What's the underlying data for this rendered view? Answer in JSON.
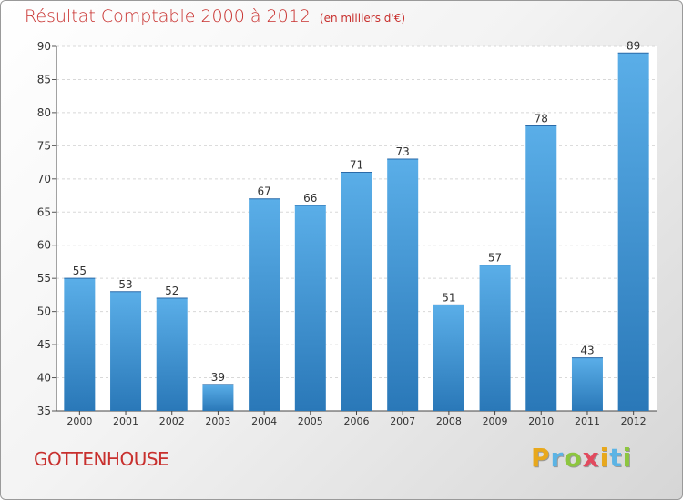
{
  "chart_data": {
    "type": "bar",
    "title": "Résultat Comptable 2000 à 2012",
    "unit_label": "(en milliers d'€)",
    "categories": [
      "2000",
      "2001",
      "2002",
      "2003",
      "2004",
      "2005",
      "2006",
      "2007",
      "2008",
      "2009",
      "2010",
      "2011",
      "2012"
    ],
    "values": [
      55,
      53,
      52,
      39,
      67,
      66,
      71,
      73,
      51,
      57,
      78,
      43,
      89
    ],
    "ylim": [
      35,
      90
    ],
    "yticks": [
      35,
      40,
      45,
      50,
      55,
      60,
      65,
      70,
      75,
      80,
      85,
      90
    ],
    "xlabel": "",
    "ylabel": "",
    "grid": true,
    "bar_color": "#4b9fdc"
  },
  "footer": {
    "city": "GOTTENHOUSE",
    "logo_letters": [
      "P",
      "r",
      "o",
      "x",
      "i",
      "t",
      "i"
    ],
    "logo_colors": [
      "#e8a81c",
      "#5bb4e5",
      "#8dc63f",
      "#e24a5e",
      "#e8a81c",
      "#5bb4e5",
      "#8dc63f"
    ]
  }
}
